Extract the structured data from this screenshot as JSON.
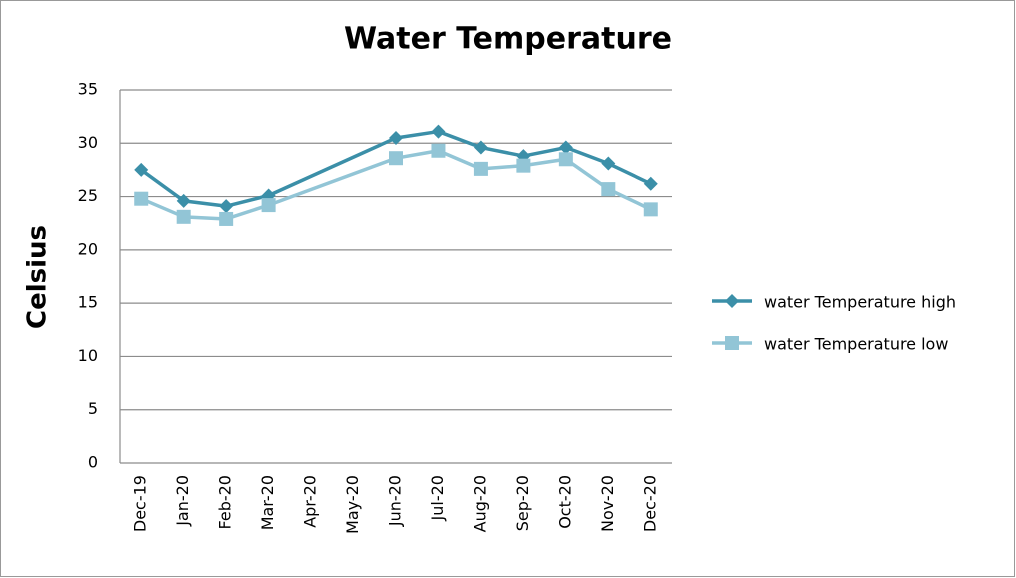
{
  "chart_data": {
    "type": "line",
    "title": "Water Temperature",
    "y_label": "Celsius",
    "categories": [
      "Dec-19",
      "Jan-20",
      "Feb-20",
      "Mar-20",
      "Apr-20",
      "May-20",
      "Jun-20",
      "Jul-20",
      "Aug-20",
      "Sep-20",
      "Oct-20",
      "Nov-20",
      "Dec-20"
    ],
    "series": [
      {
        "name": "water Temperature high",
        "color": "#3b8fa8",
        "marker": "diamond",
        "values": [
          27.5,
          24.6,
          24.1,
          25.1,
          null,
          null,
          30.5,
          31.1,
          29.6,
          28.8,
          29.6,
          28.1,
          26.2
        ]
      },
      {
        "name": "water Temperature low",
        "color": "#92c5d6",
        "marker": "square",
        "values": [
          24.8,
          23.1,
          22.9,
          24.2,
          null,
          null,
          28.6,
          29.3,
          27.6,
          27.9,
          28.5,
          25.7,
          23.8
        ]
      }
    ],
    "ylim": [
      0,
      35
    ],
    "yticks": [
      0,
      5,
      10,
      15,
      20,
      25,
      30,
      35
    ],
    "grid": true,
    "legend": "right"
  }
}
